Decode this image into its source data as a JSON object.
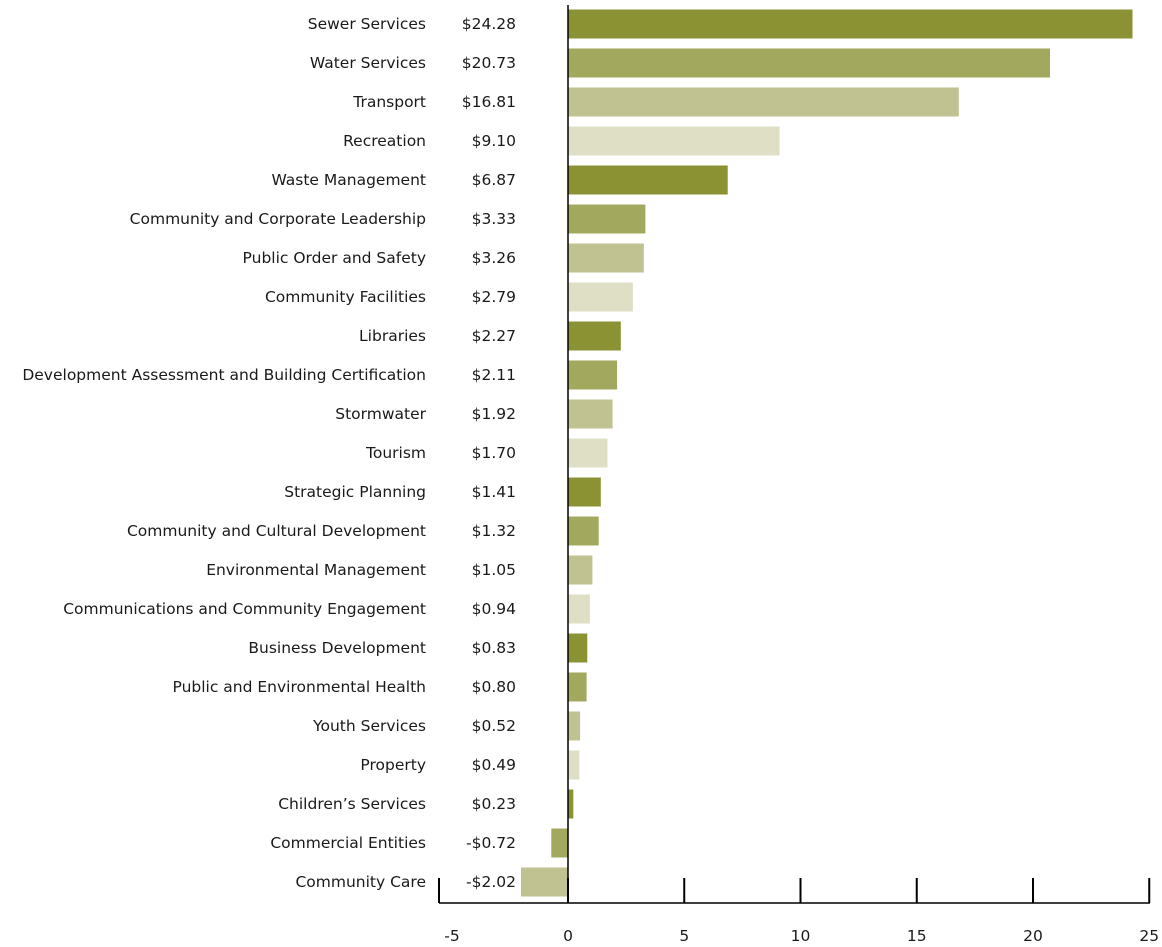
{
  "chart_data": {
    "type": "bar",
    "orientation": "horizontal",
    "title": "",
    "xlabel": "",
    "ylabel": "",
    "xlim": [
      -5,
      25
    ],
    "x_ticks": [
      "-5",
      "0",
      "5",
      "10",
      "15",
      "20",
      "25"
    ],
    "x_tick_values": [
      -5,
      0,
      5,
      10,
      15,
      20,
      25
    ],
    "grid": false,
    "legend": "none",
    "colors": [
      "#8b9233",
      "#a3a85f",
      "#c1c292",
      "#dfdfc6"
    ],
    "categories": [
      "Sewer Services",
      "Water Services",
      "Transport",
      "Recreation",
      "Waste Management",
      "Community and Corporate Leadership",
      "Public Order and Safety",
      "Community Facilities",
      "Libraries",
      "Development Assessment and Building Certification",
      "Stormwater",
      "Tourism",
      "Strategic Planning",
      "Community and Cultural Development",
      "Environmental Management",
      "Communications and Community Engagement",
      "Business Development",
      "Public and Environmental Health",
      "Youth Services",
      "Property",
      "Children’s Services",
      "Commercial Entities",
      "Community Care"
    ],
    "value_labels": [
      "$24.28",
      "$20.73",
      "$16.81",
      "$9.10",
      "$6.87",
      "$3.33",
      "$3.26",
      "$2.79",
      "$2.27",
      "$2.11",
      "$1.92",
      "$1.70",
      "$1.41",
      "$1.32",
      "$1.05",
      "$0.94",
      "$0.83",
      "$0.80",
      "$0.52",
      "$0.49",
      "$0.23",
      "-$0.72",
      "-$2.02"
    ],
    "values": [
      24.28,
      20.73,
      16.81,
      9.1,
      6.87,
      3.33,
      3.26,
      2.79,
      2.27,
      2.11,
      1.92,
      1.7,
      1.41,
      1.32,
      1.05,
      0.94,
      0.83,
      0.8,
      0.52,
      0.49,
      0.23,
      -0.72,
      -2.02
    ]
  }
}
